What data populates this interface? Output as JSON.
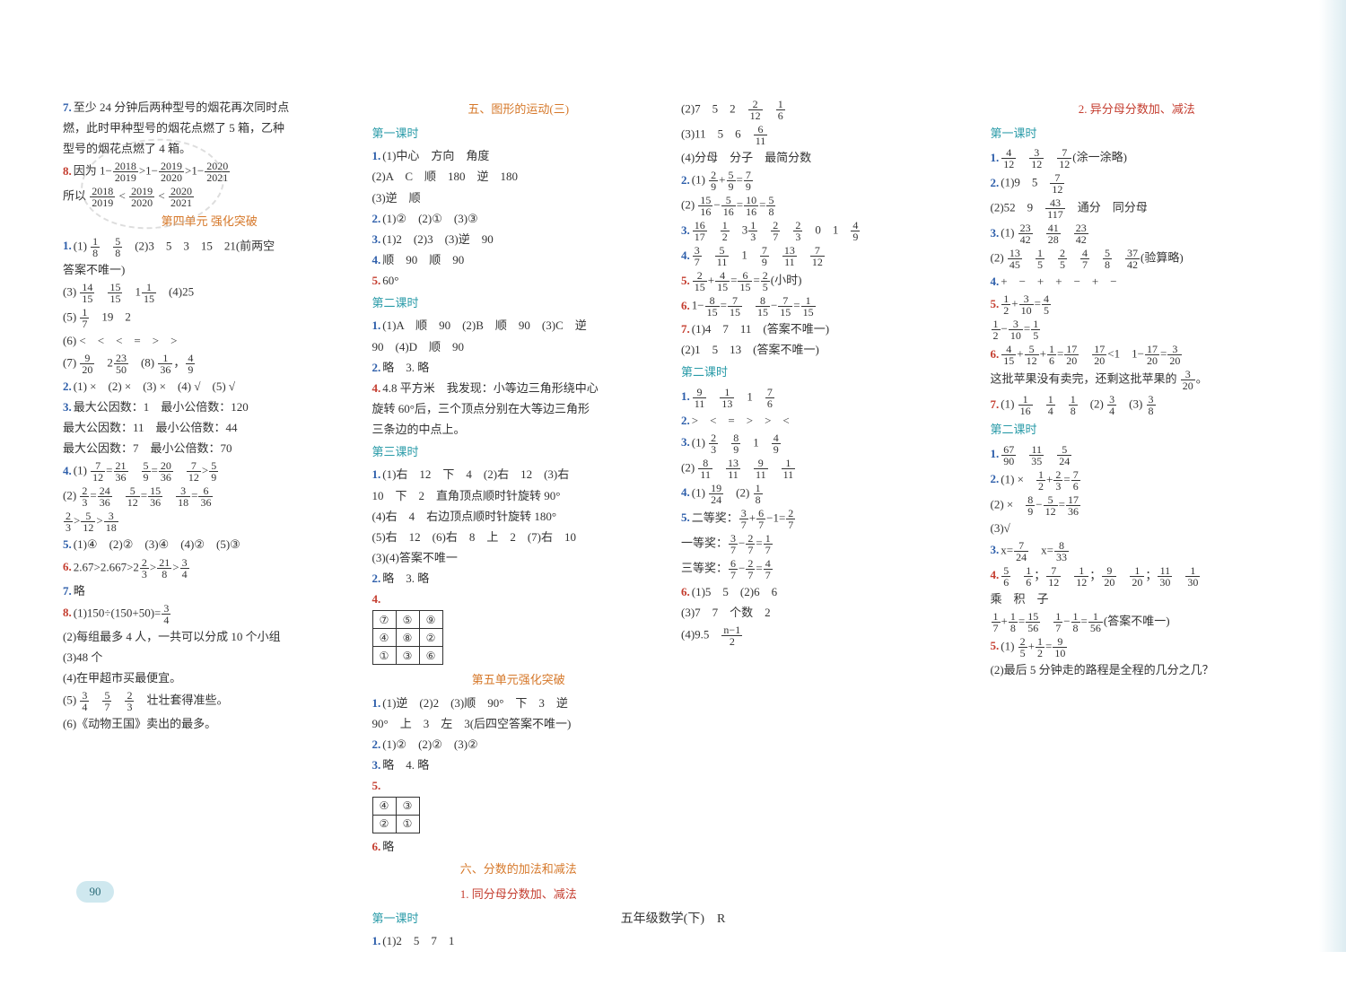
{
  "footer": "五年级数学(下)　R",
  "page_number": "90",
  "columns": [
    {
      "lines": [
        {
          "n": "7.",
          "nc": "blue",
          "t": "至少 24 分钟后两种型号的烟花再次同时点"
        },
        {
          "t": "燃，此时甲种型号的烟花点燃了 5 箱，乙种"
        },
        {
          "t": "型号的烟花点燃了 4 箱。"
        },
        {
          "n": "8.",
          "nc": "red",
          "t": "因为 1−{2018/2019}>1−{2019/2020}>1−{2020/2021}"
        },
        {
          "t": "所以 {2018/2019} < {2019/2020} < {2020/2021}"
        },
        {
          "h": "orange",
          "t": "第四单元 强化突破"
        },
        {
          "n": "1.",
          "nc": "blue",
          "t": "(1) {1/8}　{5/8}　(2)3　5　3　15　21(前两空"
        },
        {
          "t": "答案不唯一)"
        },
        {
          "t": "(3) {14/15}　{15/15}　1{1/15}　(4)25"
        },
        {
          "t": "(5) {1/7}　19　2"
        },
        {
          "t": "(6) <　<　<　=　>　>"
        },
        {
          "t": "(7) {9/20}　2{23/50}　(8) {1/36}，{4/9}"
        },
        {
          "n": "2.",
          "nc": "blue",
          "t": "(1) ×　(2) ×　(3) ×　(4) √　(5) √"
        },
        {
          "n": "3.",
          "nc": "blue",
          "t": "最大公因数：1　最小公倍数：120"
        },
        {
          "t": "最大公因数：11　最小公倍数：44"
        },
        {
          "t": "最大公因数：7　最小公倍数：70"
        },
        {
          "n": "4.",
          "nc": "blue",
          "t": "(1) {7/12}={21/36}　{5/9}={20/36}　{7/12}>{5/9}"
        },
        {
          "t": "(2) {2/3}={24/36}　{5/12}={15/36}　{3/18}={6/36}"
        },
        {
          "t": "{2/3}>{5/12}>{3/18}"
        },
        {
          "n": "5.",
          "nc": "blue",
          "t": "(1)④　(2)②　(3)④　(4)②　(5)③"
        },
        {
          "n": "6.",
          "nc": "red",
          "t": "2.67>2.667>2{2/3}>{21/8}>{3/4}"
        },
        {
          "n": "7.",
          "nc": "blue",
          "t": "略"
        },
        {
          "n": "8.",
          "nc": "red",
          "t": "(1)150÷(150+50)={3/4}"
        },
        {
          "t": "(2)每组最多 4 人，一共可以分成 10 个小组"
        },
        {
          "t": "(3)48 个"
        },
        {
          "t": "(4)在甲超市买最便宜。"
        },
        {
          "t": "(5) {3/4}　{5/7}　{2/3}　壮壮套得准些。"
        },
        {
          "t": "(6)《动物王国》卖出的最多。"
        }
      ]
    },
    {
      "lines": [
        {
          "h": "orange",
          "t": "五、图形的运动(三)"
        },
        {
          "h": "teal",
          "t": "第一课时"
        },
        {
          "n": "1.",
          "nc": "blue",
          "t": "(1)中心　方向　角度"
        },
        {
          "t": "(2)A　C　顺　180　逆　180"
        },
        {
          "t": "(3)逆　顺"
        },
        {
          "n": "2.",
          "nc": "blue",
          "t": "(1)②　(2)①　(3)③"
        },
        {
          "n": "3.",
          "nc": "blue",
          "t": "(1)2　(2)3　(3)逆　90"
        },
        {
          "n": "4.",
          "nc": "blue",
          "t": "顺　90　顺　90"
        },
        {
          "n": "5.",
          "nc": "red",
          "t": "60°"
        },
        {
          "h": "teal",
          "t": "第二课时"
        },
        {
          "n": "1.",
          "nc": "blue",
          "t": "(1)A　顺　90　(2)B　顺　90　(3)C　逆"
        },
        {
          "t": "90　(4)D　顺　90"
        },
        {
          "n": "2.",
          "nc": "blue",
          "t": "略　3. 略",
          "extra_n": "3.",
          "extra_nc": "blue"
        },
        {
          "n": "4.",
          "nc": "red",
          "t": "4.8 平方米　我发现：小等边三角形绕中心"
        },
        {
          "t": "旋转 60°后，三个顶点分别在大等边三角形"
        },
        {
          "t": "三条边的中点上。"
        },
        {
          "h": "teal",
          "t": "第三课时"
        },
        {
          "n": "1.",
          "nc": "blue",
          "t": "(1)右　12　下　4　(2)右　12　(3)右"
        },
        {
          "t": "10　下　2　直角顶点顺时针旋转 90°"
        },
        {
          "t": "(4)右　4　右边顶点顺时针旋转 180°"
        },
        {
          "t": "(5)右　12　(6)右　8　上　2　(7)右　10"
        },
        {
          "t": "(3)(4)答案不唯一"
        },
        {
          "n": "2.",
          "nc": "blue",
          "t": "略　3. 略",
          "extra_n": "3.",
          "extra_nc": "blue"
        },
        {
          "n": "4.",
          "nc": "red",
          "grid": [
            [
              "⑦",
              "⑤",
              "⑨"
            ],
            [
              "④",
              "⑧",
              "②"
            ],
            [
              "①",
              "③",
              "⑥"
            ]
          ]
        },
        {
          "h": "orange",
          "t": "第五单元强化突破"
        },
        {
          "n": "1.",
          "nc": "blue",
          "t": "(1)逆　(2)2　(3)顺　90°　下　3　逆"
        },
        {
          "t": "90°　上　3　左　3(后四空答案不唯一)"
        },
        {
          "n": "2.",
          "nc": "blue",
          "t": "(1)②　(2)②　(3)②"
        },
        {
          "n": "3.",
          "nc": "blue",
          "t": "略　4. 略",
          "extra_n": "4.",
          "extra_nc": "blue"
        },
        {
          "n": "5.",
          "nc": "red",
          "grid": [
            [
              "④",
              "③"
            ],
            [
              "②",
              "①"
            ]
          ]
        },
        {
          "n": "6.",
          "nc": "red",
          "t": "略"
        },
        {
          "h": "orange",
          "t": "六、分数的加法和减法"
        },
        {
          "h": "red",
          "t": "1. 同分母分数加、减法"
        },
        {
          "h": "teal",
          "t": "第一课时"
        },
        {
          "n": "1.",
          "nc": "blue",
          "t": "(1)2　5　7　1"
        }
      ]
    },
    {
      "lines": [
        {
          "t": "(2)7　5　2　{2/12}　{1/6}"
        },
        {
          "t": "(3)11　5　6　{6/11}"
        },
        {
          "t": "(4)分母　分子　最简分数"
        },
        {
          "n": "2.",
          "nc": "blue",
          "t": "(1) {2/9}+{5/9}={7/9}"
        },
        {
          "t": "(2) {15/16}−{5/16}={10/16}={5/8}"
        },
        {
          "n": "3.",
          "nc": "blue",
          "t": "{16/17}　{1/2}　3{1/3}　{2/7}　{2/3}　0　1　{4/9}"
        },
        {
          "n": "4.",
          "nc": "blue",
          "t": "{3/7}　{5/11}　1　{7/9}　{13/11}　{7/12}"
        },
        {
          "n": "5.",
          "nc": "red",
          "t": "{2/15}+{4/15}={6/15}={2/5}(小时)"
        },
        {
          "n": "6.",
          "nc": "red",
          "t": "1−{8/15}={7/15}　{8/15}−{7/15}={1/15}"
        },
        {
          "n": "7.",
          "nc": "red",
          "t": "(1)4　7　11　(答案不唯一)"
        },
        {
          "t": "(2)1　5　13　(答案不唯一)"
        },
        {
          "h": "teal",
          "t": "第二课时"
        },
        {
          "n": "1.",
          "nc": "blue",
          "t": "{9/11}　{1/13}　1　{7/6}"
        },
        {
          "n": "2.",
          "nc": "blue",
          "t": ">　<　=　>　>　<"
        },
        {
          "n": "3.",
          "nc": "blue",
          "t": "(1) {2/3}　{8/9}　1　{4/9}"
        },
        {
          "t": "(2) {8/11}　{13/11}　{9/11}　{1/11}"
        },
        {
          "n": "4.",
          "nc": "blue",
          "t": "(1) {19/24}　(2) {1/8}"
        },
        {
          "n": "5.",
          "nc": "blue",
          "t": "二等奖：{3/7}+{6/7}−1={2/7}"
        },
        {
          "t": "一等奖：{3/7}−{2/7}={1/7}"
        },
        {
          "t": "三等奖：{6/7}−{2/7}={4/7}"
        },
        {
          "n": "6.",
          "nc": "red",
          "t": "(1)5　5　(2)6　6"
        },
        {
          "t": "(3)7　7　个数　2"
        },
        {
          "t": "(4)9.5　{n−1/2}"
        }
      ]
    },
    {
      "lines": [
        {
          "h": "red",
          "t": "2. 异分母分数加、减法"
        },
        {
          "h": "teal",
          "t": "第一课时"
        },
        {
          "n": "1.",
          "nc": "blue",
          "t": "{4/12}　{3/12}　{7/12}(涂一涂略)"
        },
        {
          "n": "2.",
          "nc": "blue",
          "t": "(1)9　5　{7/12}"
        },
        {
          "t": "(2)52　9　{43/117}　通分　同分母"
        },
        {
          "n": "3.",
          "nc": "blue",
          "t": "(1) {23/42}　{41/28}　{23/42}"
        },
        {
          "t": "(2) {13/45}　{1/5}　{2/5}　{4/7}　{5/8}　{37/42}(验算略)"
        },
        {
          "n": "4.",
          "nc": "blue",
          "t": "+　−　+　+　−　+　−"
        },
        {
          "n": "5.",
          "nc": "red",
          "t": "{1/2}+{3/10}={4/5}"
        },
        {
          "t": "{1/2}−{3/10}={1/5}"
        },
        {
          "n": "6.",
          "nc": "red",
          "t": "{4/15}+{5/12}+{1/6}={17/20}　{17/20}<1　1−{17/20}={3/20}"
        },
        {
          "t": "这批苹果没有卖完，还剩这批苹果的 {3/20}。"
        },
        {
          "n": "7.",
          "nc": "red",
          "t": "(1) {1/16}　{1/4}　{1/8}　(2) {3/4}　(3) {3/8}"
        },
        {
          "h": "teal",
          "t": "第二课时"
        },
        {
          "n": "1.",
          "nc": "blue",
          "t": "{67/90}　{11/35}　{5/24}"
        },
        {
          "n": "2.",
          "nc": "blue",
          "t": "(1) ×　{1/2}+{2/3}={7/6}"
        },
        {
          "t": "(2) ×　{8/9}−{5/12}={17/36}"
        },
        {
          "t": "(3)√"
        },
        {
          "n": "3.",
          "nc": "blue",
          "t": "x={7/24}　x={8/33}"
        },
        {
          "n": "4.",
          "nc": "red",
          "t": "{5/6}　{1/6}；{7/12}　{1/12}；{9/20}　{1/20}；{11/30}　{1/30}"
        },
        {
          "t": "乘　积　子"
        },
        {
          "t": "{1/7}+{1/8}={15/56}　{1/7}−{1/8}={1/56}(答案不唯一)"
        },
        {
          "n": "5.",
          "nc": "red",
          "t": "(1) {2/5}+{1/2}={9/10}"
        },
        {
          "t": "(2)最后 5 分钟走的路程是全程的几分之几？"
        }
      ]
    }
  ]
}
